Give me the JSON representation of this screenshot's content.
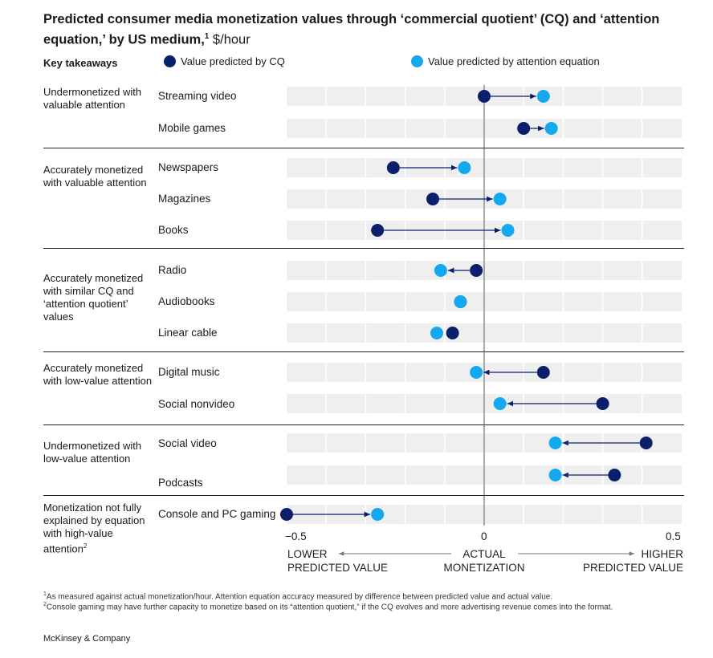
{
  "title": {
    "main": "Predicted consumer media monetization values through ‘commercial quotient’ (CQ) and ‘attention equation,’ by US medium,",
    "sup": "1",
    "unit": " $/hour"
  },
  "key_takeaways_label": "Key takeaways",
  "legend": {
    "cq": "Value predicted by CQ",
    "attention": "Value predicted by attention equation"
  },
  "colors": {
    "cq": "#0c1f6b",
    "attention": "#14a9ef",
    "band": "#efefef",
    "arrow": "#0c1f6b"
  },
  "groups": [
    {
      "label": "Undermonetized with valuable attention",
      "rows": [
        0,
        1
      ]
    },
    {
      "label": "Accurately monetized with valuable attention",
      "rows": [
        2,
        3,
        4
      ]
    },
    {
      "label": "Accurately monetized with similar CQ and ‘attention quotient’ values",
      "rows": [
        5,
        6,
        7
      ]
    },
    {
      "label": "Accurately monetized with low-value attention",
      "rows": [
        8,
        9
      ]
    },
    {
      "label": "Undermonetized with low-value attention",
      "rows": [
        10,
        11
      ]
    },
    {
      "label": "Monetization not fully explained by equation with high-value attention",
      "sup": "2",
      "rows": [
        12
      ]
    }
  ],
  "chart_data": {
    "type": "scatter",
    "title": "Predicted consumer media monetization values through ‘commercial quotient’ (CQ) and ‘attention equation,’ by US medium",
    "unit": "$/hour",
    "xlim": [
      -0.5,
      0.5
    ],
    "x_ticks": [
      "−0.5",
      "0",
      "0.5"
    ],
    "x_captions": {
      "left": [
        "LOWER",
        "PREDICTED VALUE"
      ],
      "center": [
        "ACTUAL",
        "MONETIZATION"
      ],
      "right": [
        "HIGHER",
        "PREDICTED VALUE"
      ]
    },
    "categories": [
      "Streaming video",
      "Mobile games",
      "Newspapers",
      "Magazines",
      "Books",
      "Radio",
      "Audiobooks",
      "Linear cable",
      "Digital music",
      "Social nonvideo",
      "Social video",
      "Podcasts",
      "Console and PC gaming"
    ],
    "series": [
      {
        "name": "Value predicted by CQ",
        "values": [
          0.0,
          0.1,
          -0.23,
          -0.13,
          -0.27,
          -0.02,
          -0.06,
          -0.08,
          0.15,
          0.3,
          0.41,
          0.33,
          -0.5
        ]
      },
      {
        "name": "Value predicted by attention equation",
        "values": [
          0.15,
          0.17,
          -0.05,
          0.04,
          0.06,
          -0.11,
          -0.06,
          -0.12,
          -0.02,
          0.04,
          0.18,
          0.18,
          -0.27
        ]
      }
    ]
  },
  "footnotes": [
    {
      "sup": "1",
      "text": "As measured against actual monetization/hour. Attention equation accuracy measured by difference between predicted value and actual value."
    },
    {
      "sup": "2",
      "text": "Console gaming may have further capacity to monetize based on its “attention quotient,” if the CQ evolves and more advertising revenue comes into the format."
    }
  ],
  "brand": "McKinsey & Company"
}
